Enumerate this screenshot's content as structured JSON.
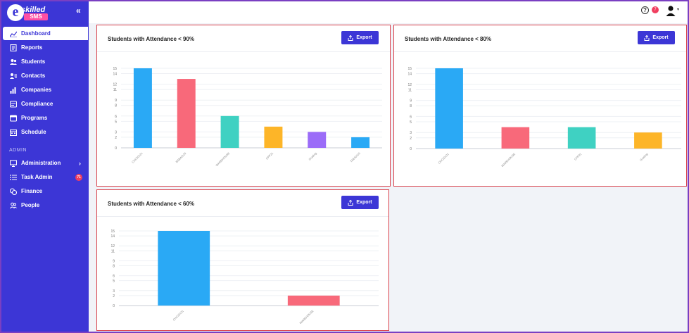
{
  "app": {
    "logo_word": "skilled",
    "logo_letter": "e",
    "logo_badge": "SMS",
    "collapse_glyph": "«"
  },
  "sidebar": {
    "items": [
      {
        "label": "Dashboard",
        "icon": "chart-line-icon",
        "active": true
      },
      {
        "label": "Reports",
        "icon": "report-icon"
      },
      {
        "label": "Students",
        "icon": "students-icon"
      },
      {
        "label": "Contacts",
        "icon": "contacts-icon"
      },
      {
        "label": "Companies",
        "icon": "bar-chart-icon"
      },
      {
        "label": "Compliance",
        "icon": "compliance-icon"
      },
      {
        "label": "Programs",
        "icon": "programs-icon"
      },
      {
        "label": "Schedule",
        "icon": "schedule-icon"
      }
    ],
    "section_label": "ADMIN",
    "admin_items": [
      {
        "label": "Administration",
        "icon": "monitor-icon",
        "chevron": "›"
      },
      {
        "label": "Task Admin",
        "icon": "list-icon",
        "badge": "71"
      },
      {
        "label": "Finance",
        "icon": "coins-icon"
      },
      {
        "label": "People",
        "icon": "people-icon"
      }
    ]
  },
  "topbar": {
    "help_glyph": "?",
    "notification_count": "7",
    "user_caret": "▾"
  },
  "export_label": "Export",
  "colors": {
    "accent": "#3c36d6",
    "card_border": "#d9414b",
    "palette": [
      "#2aa9f5",
      "#f8697a",
      "#3fd1c2",
      "#fdb528",
      "#9b6cf8",
      "#2aa9f5"
    ]
  },
  "cards": [
    {
      "title": "Students with Attendance < 90%"
    },
    {
      "title": "Students with Attendance < 80%"
    },
    {
      "title": "Students with Attendance < 60%"
    }
  ],
  "chart_data": [
    {
      "type": "bar",
      "title": "Students with Attendance < 90%",
      "categories": [
        "CHC30121",
        "BSB40120",
        "WAREHOUSE",
        "CPP21",
        "Grading",
        "TAE40110"
      ],
      "values": [
        15,
        13,
        6,
        4,
        3,
        2
      ],
      "ylim": [
        0,
        15
      ],
      "yticks": [
        0,
        2,
        3,
        5,
        6,
        8,
        9,
        11,
        12,
        14,
        15
      ],
      "grid": true
    },
    {
      "type": "bar",
      "title": "Students with Attendance < 80%",
      "categories": [
        "CHC30121",
        "WAREHOUSE",
        "CPP21",
        "Grading"
      ],
      "values": [
        15,
        4,
        4,
        3
      ],
      "ylim": [
        0,
        15
      ],
      "yticks": [
        0,
        2,
        3,
        5,
        6,
        8,
        9,
        11,
        12,
        14,
        15
      ],
      "grid": true
    },
    {
      "type": "bar",
      "title": "Students with Attendance < 60%",
      "categories": [
        "CHC30121",
        "WAREHOUSE"
      ],
      "values": [
        15,
        2
      ],
      "ylim": [
        0,
        15
      ],
      "yticks": [
        0,
        2,
        3,
        5,
        6,
        8,
        9,
        11,
        12,
        14,
        15
      ],
      "grid": true
    }
  ]
}
